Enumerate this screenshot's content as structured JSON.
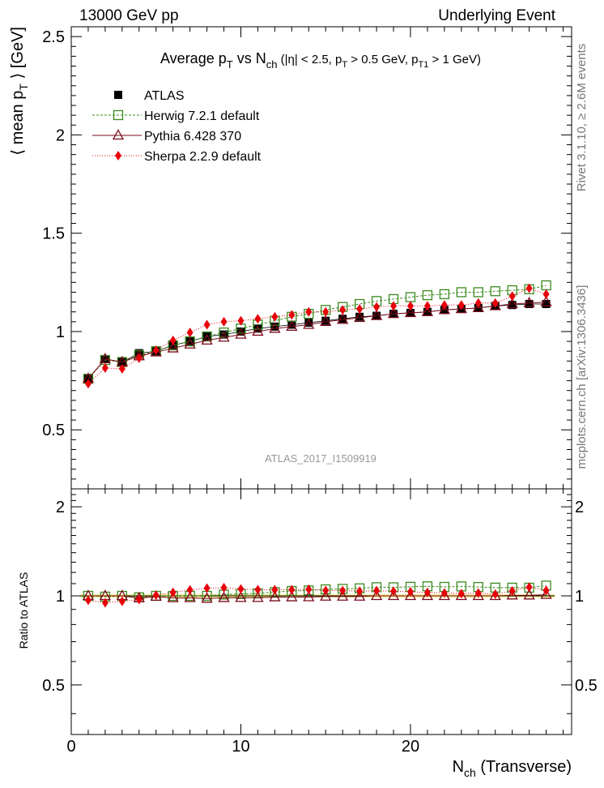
{
  "header": {
    "left": "13000 GeV pp",
    "right": "Underlying Event"
  },
  "side": {
    "rivet": "Rivet 3.1.10, ≥ 2.6M events",
    "mcplots": "mcplots.cern.ch [arXiv:1306.3436]"
  },
  "watermark": "ATLAS_2017_I1509919",
  "chart_data": {
    "type": "scatter",
    "title": {
      "main": "Average p",
      "sub_T1": "T",
      "mid": " vs N",
      "sub_ch": "ch",
      "cuts_a": " (|η| < 2.5, p",
      "sub_T2": "T",
      "cuts_b": " > 0.5 GeV, p",
      "sub_T3": "T1",
      "cuts_c": " > 1 GeV)"
    },
    "ylabel": "⟨ mean p_T ⟩ [GeV]",
    "ylabel_parts": {
      "a": "⟨ mean p",
      "sub": "T",
      "b": " ⟩ [GeV]"
    },
    "xlabel_parts": {
      "a": "N",
      "sub": "ch",
      "b": " (Transverse)"
    },
    "ratio_ylabel": "Ratio to ATLAS",
    "xlim": [
      0,
      29.5
    ],
    "ylim": [
      0.2,
      2.55
    ],
    "ratio_ylim": [
      0.34,
      2.3
    ],
    "xticks": [
      0,
      10,
      20
    ],
    "yticks": [
      0.5,
      1,
      1.5,
      2,
      2.5
    ],
    "yticklabels": [
      "0.5",
      "1",
      "1.5",
      "2",
      "2.5"
    ],
    "ratio_yticks": [
      0.5,
      1,
      2
    ],
    "ratio_yticklabels": [
      "0.5",
      "1",
      "2"
    ],
    "x": [
      1,
      2,
      3,
      4,
      5,
      6,
      7,
      8,
      9,
      10,
      11,
      12,
      13,
      14,
      15,
      16,
      17,
      18,
      19,
      20,
      21,
      22,
      23,
      24,
      25,
      26,
      27,
      28
    ],
    "series": [
      {
        "name": "ATLAS",
        "color": "#000000",
        "marker": "filled-square",
        "values": [
          0.76,
          0.86,
          0.845,
          0.89,
          0.9,
          0.93,
          0.95,
          0.975,
          0.985,
          1.0,
          1.015,
          1.025,
          1.035,
          1.045,
          1.055,
          1.065,
          1.075,
          1.08,
          1.09,
          1.095,
          1.1,
          1.11,
          1.115,
          1.12,
          1.13,
          1.135,
          1.14,
          1.14
        ]
      },
      {
        "name": "Herwig 7.2.1 default",
        "color": "#3a8a1e",
        "marker": "open-square",
        "values": [
          0.76,
          0.855,
          0.845,
          0.88,
          0.9,
          0.93,
          0.95,
          0.975,
          0.995,
          1.015,
          1.035,
          1.055,
          1.075,
          1.09,
          1.11,
          1.125,
          1.14,
          1.155,
          1.165,
          1.175,
          1.185,
          1.19,
          1.2,
          1.2,
          1.205,
          1.21,
          1.215,
          1.235
        ]
      },
      {
        "name": "Pythia 6.428 370",
        "color": "#7a0a1a",
        "marker": "open-triangle",
        "values": [
          0.76,
          0.86,
          0.845,
          0.875,
          0.895,
          0.915,
          0.935,
          0.955,
          0.97,
          0.985,
          1.0,
          1.015,
          1.025,
          1.035,
          1.05,
          1.06,
          1.07,
          1.08,
          1.09,
          1.095,
          1.1,
          1.11,
          1.115,
          1.12,
          1.13,
          1.14,
          1.145,
          1.15
        ]
      },
      {
        "name": "Sherpa 2.2.9 default",
        "color": "#e8000b",
        "marker": "filled-diamond",
        "values": [
          0.735,
          0.815,
          0.81,
          0.865,
          0.905,
          0.955,
          0.995,
          1.035,
          1.05,
          1.055,
          1.065,
          1.075,
          1.085,
          1.1,
          1.1,
          1.11,
          1.115,
          1.125,
          1.13,
          1.13,
          1.13,
          1.135,
          1.135,
          1.145,
          1.145,
          1.18,
          1.22,
          1.19
        ]
      }
    ]
  }
}
